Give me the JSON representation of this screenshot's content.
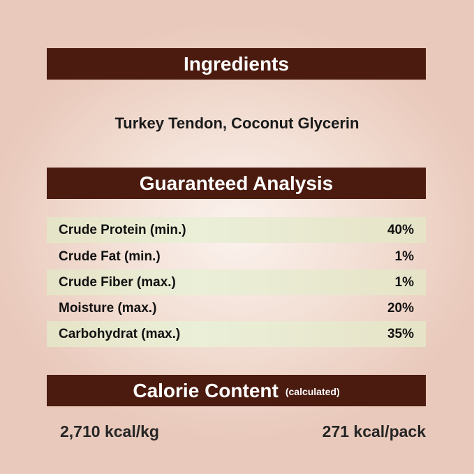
{
  "ingredients": {
    "title": "Ingredients",
    "text": "Turkey Tendon, Coconut Glycerin"
  },
  "analysis": {
    "title": "Guaranteed Analysis",
    "rows": [
      {
        "label": "Crude Protein (min.)",
        "value": "40%"
      },
      {
        "label": "Crude Fat (min.)",
        "value": "1%"
      },
      {
        "label": "Crude Fiber (max.)",
        "value": "1%"
      },
      {
        "label": "Moisture (max.)",
        "value": "20%"
      },
      {
        "label": "Carbohydrat (max.)",
        "value": "35%"
      }
    ]
  },
  "calorie": {
    "title": "Calorie Content",
    "note": "(calculated)",
    "per_kg": "2,710 kcal/kg",
    "per_pack": "271 kcal/pack"
  },
  "colors": {
    "banner": "#4b1b0f",
    "row_shade": "#e6e3c7"
  }
}
